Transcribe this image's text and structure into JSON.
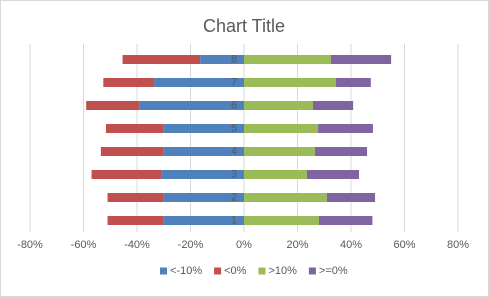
{
  "chart_data": {
    "type": "bar",
    "orientation": "horizontal",
    "stacked": true,
    "title": "Chart Title",
    "categories": [
      "1",
      "2",
      "3",
      "4",
      "5",
      "6",
      "7",
      "8"
    ],
    "series": [
      {
        "name": "<-10%",
        "color": "#4f81bd",
        "values": [
          -30,
          -30,
          -31,
          -30,
          -30,
          -39,
          -33.6,
          -16.4
        ]
      },
      {
        "name": "<0%",
        "color": "#c0504d",
        "values": [
          -21,
          -21,
          -26,
          -23.5,
          -21.6,
          -20,
          -19,
          -29
        ]
      },
      {
        "name": ">10%",
        "color": "#9bbb59",
        "values": [
          28,
          31,
          23.5,
          26.5,
          27.7,
          25.8,
          34.4,
          32.5
        ]
      },
      {
        "name": ">=0%",
        "color": "#8064a2",
        "values": [
          20,
          18,
          19.5,
          19.5,
          20.5,
          15,
          13,
          22.5
        ]
      }
    ],
    "xlim": [
      -80,
      80
    ],
    "xticks": [
      {
        "value": -80,
        "label": "-80%"
      },
      {
        "value": -60,
        "label": "-60%"
      },
      {
        "value": -40,
        "label": "-40%"
      },
      {
        "value": -20,
        "label": "-20%"
      },
      {
        "value": 0,
        "label": "0%"
      },
      {
        "value": 20,
        "label": "20%"
      },
      {
        "value": 40,
        "label": "40%"
      },
      {
        "value": 60,
        "label": "60%"
      },
      {
        "value": 80,
        "label": "80%"
      }
    ],
    "grid": true,
    "legend": "bottom"
  }
}
